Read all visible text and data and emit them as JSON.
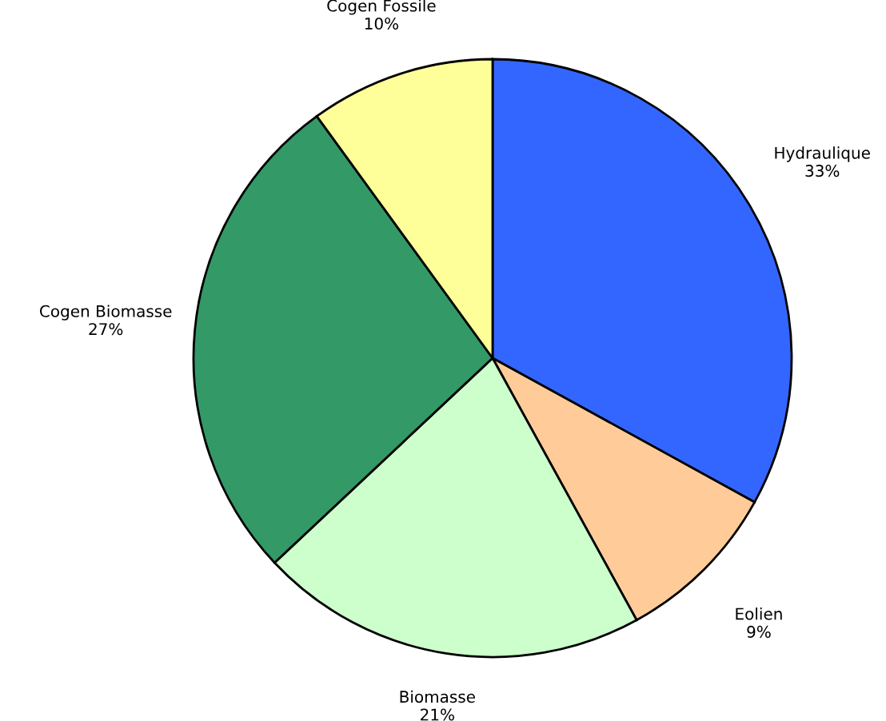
{
  "chart_data": {
    "type": "pie",
    "categories": [
      "Hydraulique",
      "Eolien",
      "Biomasse",
      "Cogen Biomasse",
      "Cogen Fossile"
    ],
    "values": [
      33,
      9,
      21,
      27,
      10
    ],
    "value_labels": [
      "33%",
      "9%",
      "21%",
      "27%",
      "10%"
    ],
    "colors": [
      "#3366ff",
      "#ffcc99",
      "#ccffcc",
      "#339966",
      "#ffff99"
    ],
    "legend": false
  }
}
